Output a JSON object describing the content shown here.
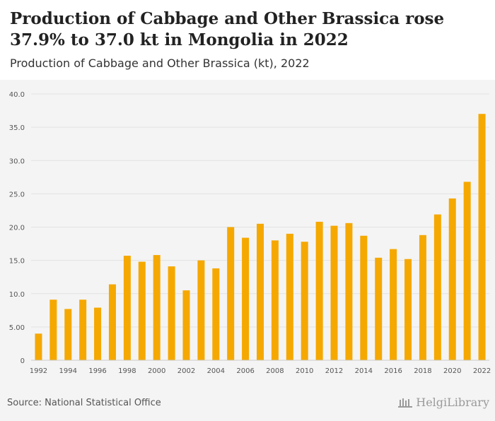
{
  "header": {
    "title": "Production of Cabbage and Other Brassica rose 37.9% to 37.0 kt in Mongolia in 2022",
    "subtitle": "Production of Cabbage and Other Brassica (kt), 2022"
  },
  "footer": {
    "source": "Source: National Statistical Office",
    "logo_text": "HelgiLibrary"
  },
  "colors": {
    "bar": "#f5a800",
    "grid": "#e2e2e2",
    "axis_text": "#555555"
  },
  "chart_data": {
    "type": "bar",
    "title": "Production of Cabbage and Other Brassica rose 37.9% to 37.0 kt in Mongolia in 2022",
    "subtitle": "Production of Cabbage and Other Brassica (kt), 2022",
    "categories": [
      "1992",
      "1993",
      "1994",
      "1995",
      "1996",
      "1997",
      "1998",
      "1999",
      "2000",
      "2001",
      "2002",
      "2003",
      "2004",
      "2005",
      "2006",
      "2007",
      "2008",
      "2009",
      "2010",
      "2011",
      "2012",
      "2013",
      "2014",
      "2015",
      "2016",
      "2017",
      "2018",
      "2019",
      "2020",
      "2021",
      "2022"
    ],
    "x_tick_labels": [
      "1992",
      "",
      "1994",
      "",
      "1996",
      "",
      "1998",
      "",
      "2000",
      "",
      "2002",
      "",
      "2004",
      "",
      "2006",
      "",
      "2008",
      "",
      "2010",
      "",
      "2012",
      "",
      "2014",
      "",
      "2016",
      "",
      "2018",
      "",
      "2020",
      "",
      "2022"
    ],
    "values": [
      4.0,
      9.1,
      7.7,
      9.1,
      7.9,
      11.4,
      15.7,
      14.8,
      15.8,
      14.1,
      10.5,
      15.0,
      13.8,
      20.0,
      18.4,
      20.5,
      18.0,
      19.0,
      17.8,
      20.8,
      20.2,
      20.6,
      18.7,
      15.4,
      16.7,
      15.2,
      18.8,
      21.9,
      24.3,
      26.8,
      37.0
    ],
    "ylim": [
      0,
      40
    ],
    "y_ticks": [
      0,
      5,
      10,
      15,
      20,
      25,
      30,
      35,
      40
    ],
    "y_tick_labels": [
      "0",
      "5.00",
      "10.0",
      "15.0",
      "20.0",
      "25.0",
      "30.0",
      "35.0",
      "40.0"
    ],
    "xlabel": "",
    "ylabel": "",
    "grid": true,
    "legend": "none"
  }
}
